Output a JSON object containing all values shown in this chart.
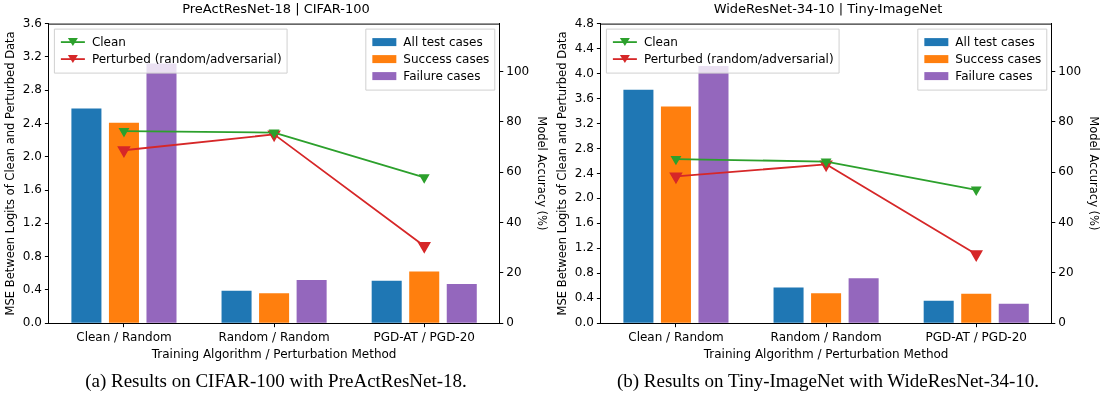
{
  "chart_data": [
    {
      "type": "bar",
      "title": "PreActResNet-18 | CIFAR-100",
      "xlabel": "Training Algorithm / Perturbation Method",
      "ylabel": "MSE Between Logits of Clean and Perturbed Data",
      "y2label": "Model Accuracy (%)",
      "categories": [
        "Clean / Random",
        "Random / Random",
        "PGD-AT / PGD-20"
      ],
      "series": [
        {
          "name": "All test cases",
          "color": "#1f77b4",
          "values": [
            2.58,
            0.39,
            0.51
          ]
        },
        {
          "name": "Success cases",
          "color": "#ff7f0e",
          "values": [
            2.41,
            0.36,
            0.62
          ]
        },
        {
          "name": "Failure cases",
          "color": "#9467bd",
          "values": [
            3.12,
            0.52,
            0.47
          ]
        },
        {
          "name": "Clean",
          "type": "line",
          "axis": "y2",
          "color": "#2ca02c",
          "values": [
            76.3,
            75.7,
            57.9
          ]
        },
        {
          "name": "Perturbed (random/adversarial)",
          "type": "line",
          "axis": "y2",
          "color": "#d62728",
          "values": [
            68.7,
            75.0,
            30.7
          ]
        }
      ],
      "ylim": [
        0,
        3.6
      ],
      "yticks": [
        {
          "value": 0,
          "label": "0.0"
        },
        0.4,
        0.8,
        1.2,
        1.6,
        {
          "value": 2,
          "label": "2.0"
        },
        2.4,
        2.8,
        3.2,
        3.6
      ],
      "y2lim": [
        0,
        119
      ],
      "y2ticks": [
        0,
        20,
        40,
        60,
        80,
        100
      ],
      "grid": false,
      "legend": "top",
      "marker": "triangle",
      "line_style": "solid",
      "annotations": [
        "(a) Results on CIFAR-100 with PreActResNet-18."
      ]
    },
    {
      "type": "bar",
      "title": "WideResNet-34-10 | Tiny-ImageNet",
      "xlabel": "Training Algorithm / Perturbation Method",
      "ylabel": "MSE Between Logits of Clean and Perturbed Data",
      "y2label": "Model Accuracy (%)",
      "categories": [
        "Clean / Random",
        "Random / Random",
        "PGD-AT / PGD-20"
      ],
      "series": [
        {
          "name": "All test cases",
          "color": "#1f77b4",
          "values": [
            3.74,
            0.57,
            0.36
          ]
        },
        {
          "name": "Success cases",
          "color": "#ff7f0e",
          "values": [
            3.47,
            0.48,
            0.47
          ]
        },
        {
          "name": "Failure cases",
          "color": "#9467bd",
          "values": [
            4.12,
            0.72,
            0.31
          ]
        },
        {
          "name": "Clean",
          "type": "line",
          "axis": "y2",
          "color": "#2ca02c",
          "values": [
            65.2,
            64.2,
            53.0
          ]
        },
        {
          "name": "Perturbed (random/adversarial)",
          "type": "line",
          "axis": "y2",
          "color": "#d62728",
          "values": [
            58.3,
            63.1,
            27.4
          ]
        }
      ],
      "ylim": [
        0,
        4.8
      ],
      "yticks": [
        {
          "value": 0,
          "label": "0.0"
        },
        0.4,
        0.8,
        1.2,
        1.6,
        {
          "value": 2,
          "label": "2.0"
        },
        2.4,
        2.8,
        3.2,
        3.6,
        {
          "value": 4,
          "label": "4.0"
        },
        4.4,
        4.8
      ],
      "y2lim": [
        0,
        119
      ],
      "y2ticks": [
        0,
        20,
        40,
        60,
        80,
        100
      ],
      "grid": false,
      "legend": "top",
      "marker": "triangle",
      "line_style": "solid",
      "annotations": [
        "(b) Results on Tiny-ImageNet with WideResNet-34-10."
      ]
    }
  ]
}
